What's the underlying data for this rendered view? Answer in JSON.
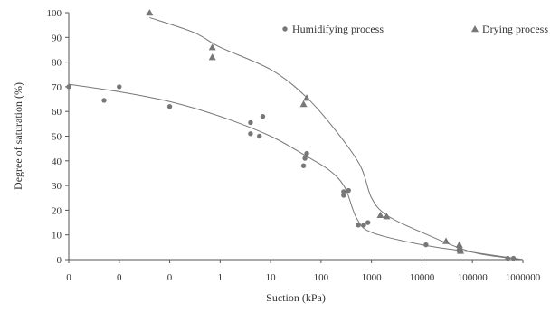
{
  "chart_data": {
    "type": "scatter",
    "title": "",
    "xlabel": "Suction (kPa)",
    "ylabel": "Degree of saturation (%)",
    "x_scale": "log",
    "x_ticks": [
      {
        "value": 0.001,
        "label": "0"
      },
      {
        "value": 0.01,
        "label": "0"
      },
      {
        "value": 0.1,
        "label": "0"
      },
      {
        "value": 1,
        "label": "1"
      },
      {
        "value": 10,
        "label": "10"
      },
      {
        "value": 100,
        "label": "100"
      },
      {
        "value": 1000,
        "label": "1000"
      },
      {
        "value": 10000,
        "label": "10000"
      },
      {
        "value": 100000,
        "label": "100000"
      },
      {
        "value": 1000000,
        "label": "1000000"
      }
    ],
    "xlim": [
      0.001,
      1000000
    ],
    "ylim": [
      0,
      100
    ],
    "y_ticks": [
      0,
      10,
      20,
      30,
      40,
      50,
      60,
      70,
      80,
      90,
      100
    ],
    "grid": false,
    "legend_position": "top-right",
    "series": [
      {
        "name": "Humidifying process",
        "marker": "circle",
        "color": "#777777",
        "points": [
          {
            "x": 0.001,
            "y": 70
          },
          {
            "x": 0.005,
            "y": 64.5
          },
          {
            "x": 0.01,
            "y": 70
          },
          {
            "x": 0.1,
            "y": 62
          },
          {
            "x": 4,
            "y": 55.5
          },
          {
            "x": 4,
            "y": 51
          },
          {
            "x": 6,
            "y": 50
          },
          {
            "x": 7,
            "y": 58
          },
          {
            "x": 45,
            "y": 38
          },
          {
            "x": 48,
            "y": 41
          },
          {
            "x": 52,
            "y": 43
          },
          {
            "x": 280,
            "y": 26
          },
          {
            "x": 280,
            "y": 27.5
          },
          {
            "x": 350,
            "y": 28
          },
          {
            "x": 550,
            "y": 14
          },
          {
            "x": 700,
            "y": 14
          },
          {
            "x": 850,
            "y": 15
          },
          {
            "x": 12000,
            "y": 6
          },
          {
            "x": 500000,
            "y": 0.5
          },
          {
            "x": 650000,
            "y": 0.5
          }
        ]
      },
      {
        "name": "Drying process",
        "marker": "triangle",
        "color": "#777777",
        "points": [
          {
            "x": 0.04,
            "y": 100
          },
          {
            "x": 0.7,
            "y": 86
          },
          {
            "x": 0.7,
            "y": 82
          },
          {
            "x": 45,
            "y": 63
          },
          {
            "x": 52,
            "y": 65.5
          },
          {
            "x": 1500,
            "y": 18
          },
          {
            "x": 2000,
            "y": 17.5
          },
          {
            "x": 30000,
            "y": 7.5
          },
          {
            "x": 55000,
            "y": 6
          },
          {
            "x": 56000,
            "y": 5
          },
          {
            "x": 57000,
            "y": 4
          },
          {
            "x": 58000,
            "y": 3.5
          }
        ]
      }
    ],
    "fit_curves": [
      {
        "series": "Humidifying process",
        "points": [
          {
            "x": 0.001,
            "y": 71
          },
          {
            "x": 0.01,
            "y": 68
          },
          {
            "x": 0.1,
            "y": 64
          },
          {
            "x": 1,
            "y": 58
          },
          {
            "x": 10,
            "y": 50
          },
          {
            "x": 50,
            "y": 42
          },
          {
            "x": 150,
            "y": 36
          },
          {
            "x": 300,
            "y": 29
          },
          {
            "x": 500,
            "y": 17
          },
          {
            "x": 1000,
            "y": 11
          },
          {
            "x": 10000,
            "y": 6
          },
          {
            "x": 100000,
            "y": 3
          },
          {
            "x": 1000000,
            "y": 0
          }
        ]
      },
      {
        "series": "Drying process",
        "points": [
          {
            "x": 0.04,
            "y": 98
          },
          {
            "x": 0.3,
            "y": 92
          },
          {
            "x": 1,
            "y": 86
          },
          {
            "x": 10,
            "y": 77
          },
          {
            "x": 50,
            "y": 66
          },
          {
            "x": 200,
            "y": 52
          },
          {
            "x": 600,
            "y": 38
          },
          {
            "x": 1000,
            "y": 25
          },
          {
            "x": 2000,
            "y": 18
          },
          {
            "x": 10000,
            "y": 11
          },
          {
            "x": 100000,
            "y": 3
          },
          {
            "x": 1000000,
            "y": 0
          }
        ]
      }
    ]
  }
}
